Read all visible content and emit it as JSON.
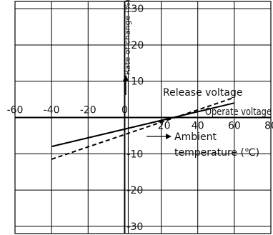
{
  "chart_data": {
    "type": "line",
    "x_ticks": [
      "-60",
      "-40",
      "-20",
      "0",
      "20",
      "40",
      "60",
      "80"
    ],
    "y_ticks_pos": [
      "30",
      "20",
      "10"
    ],
    "y_ticks_neg": [
      "-10",
      "-20",
      "-30"
    ],
    "xlim": [
      -60,
      80
    ],
    "ylim": [
      -32,
      32
    ],
    "ylabel": "Rate of change (%)",
    "xlabel_line1": "Ambient",
    "xlabel_line2": "temperature (℃)",
    "grid": true,
    "series": [
      {
        "name": "Release voltage",
        "style": "dashed",
        "x": [
          -40,
          60
        ],
        "y": [
          -11.5,
          5.5
        ]
      },
      {
        "name": "Operate voltage",
        "style": "solid",
        "x": [
          -40,
          60
        ],
        "y": [
          -8,
          4
        ]
      }
    ]
  }
}
